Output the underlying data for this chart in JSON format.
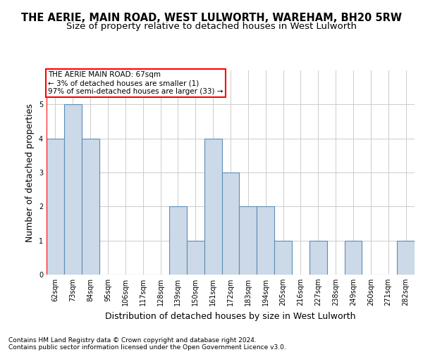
{
  "title": "THE AERIE, MAIN ROAD, WEST LULWORTH, WAREHAM, BH20 5RW",
  "subtitle": "Size of property relative to detached houses in West Lulworth",
  "xlabel": "Distribution of detached houses by size in West Lulworth",
  "ylabel": "Number of detached properties",
  "footer1": "Contains HM Land Registry data © Crown copyright and database right 2024.",
  "footer2": "Contains public sector information licensed under the Open Government Licence v3.0.",
  "categories": [
    "62sqm",
    "73sqm",
    "84sqm",
    "95sqm",
    "106sqm",
    "117sqm",
    "128sqm",
    "139sqm",
    "150sqm",
    "161sqm",
    "172sqm",
    "183sqm",
    "194sqm",
    "205sqm",
    "216sqm",
    "227sqm",
    "238sqm",
    "249sqm",
    "260sqm",
    "271sqm",
    "282sqm"
  ],
  "values": [
    4,
    5,
    4,
    0,
    0,
    0,
    0,
    2,
    1,
    4,
    3,
    2,
    2,
    1,
    0,
    1,
    0,
    1,
    0,
    0,
    1
  ],
  "bar_color": "#ccd9e8",
  "bar_edge_color": "#5b8db8",
  "bar_linewidth": 0.8,
  "annotation_box_text1": "THE AERIE MAIN ROAD: 67sqm",
  "annotation_box_text2": "← 3% of detached houses are smaller (1)",
  "annotation_box_text3": "97% of semi-detached houses are larger (33) →",
  "annotation_box_color": "red",
  "ylim": [
    0,
    6
  ],
  "yticks": [
    0,
    1,
    2,
    3,
    4,
    5,
    6
  ],
  "title_fontsize": 10.5,
  "subtitle_fontsize": 9.5,
  "ylabel_fontsize": 9,
  "xlabel_fontsize": 9,
  "tick_fontsize": 7,
  "annotation_fontsize": 7.5,
  "footer_fontsize": 6.5,
  "background_color": "#ffffff",
  "grid_color": "#cccccc"
}
